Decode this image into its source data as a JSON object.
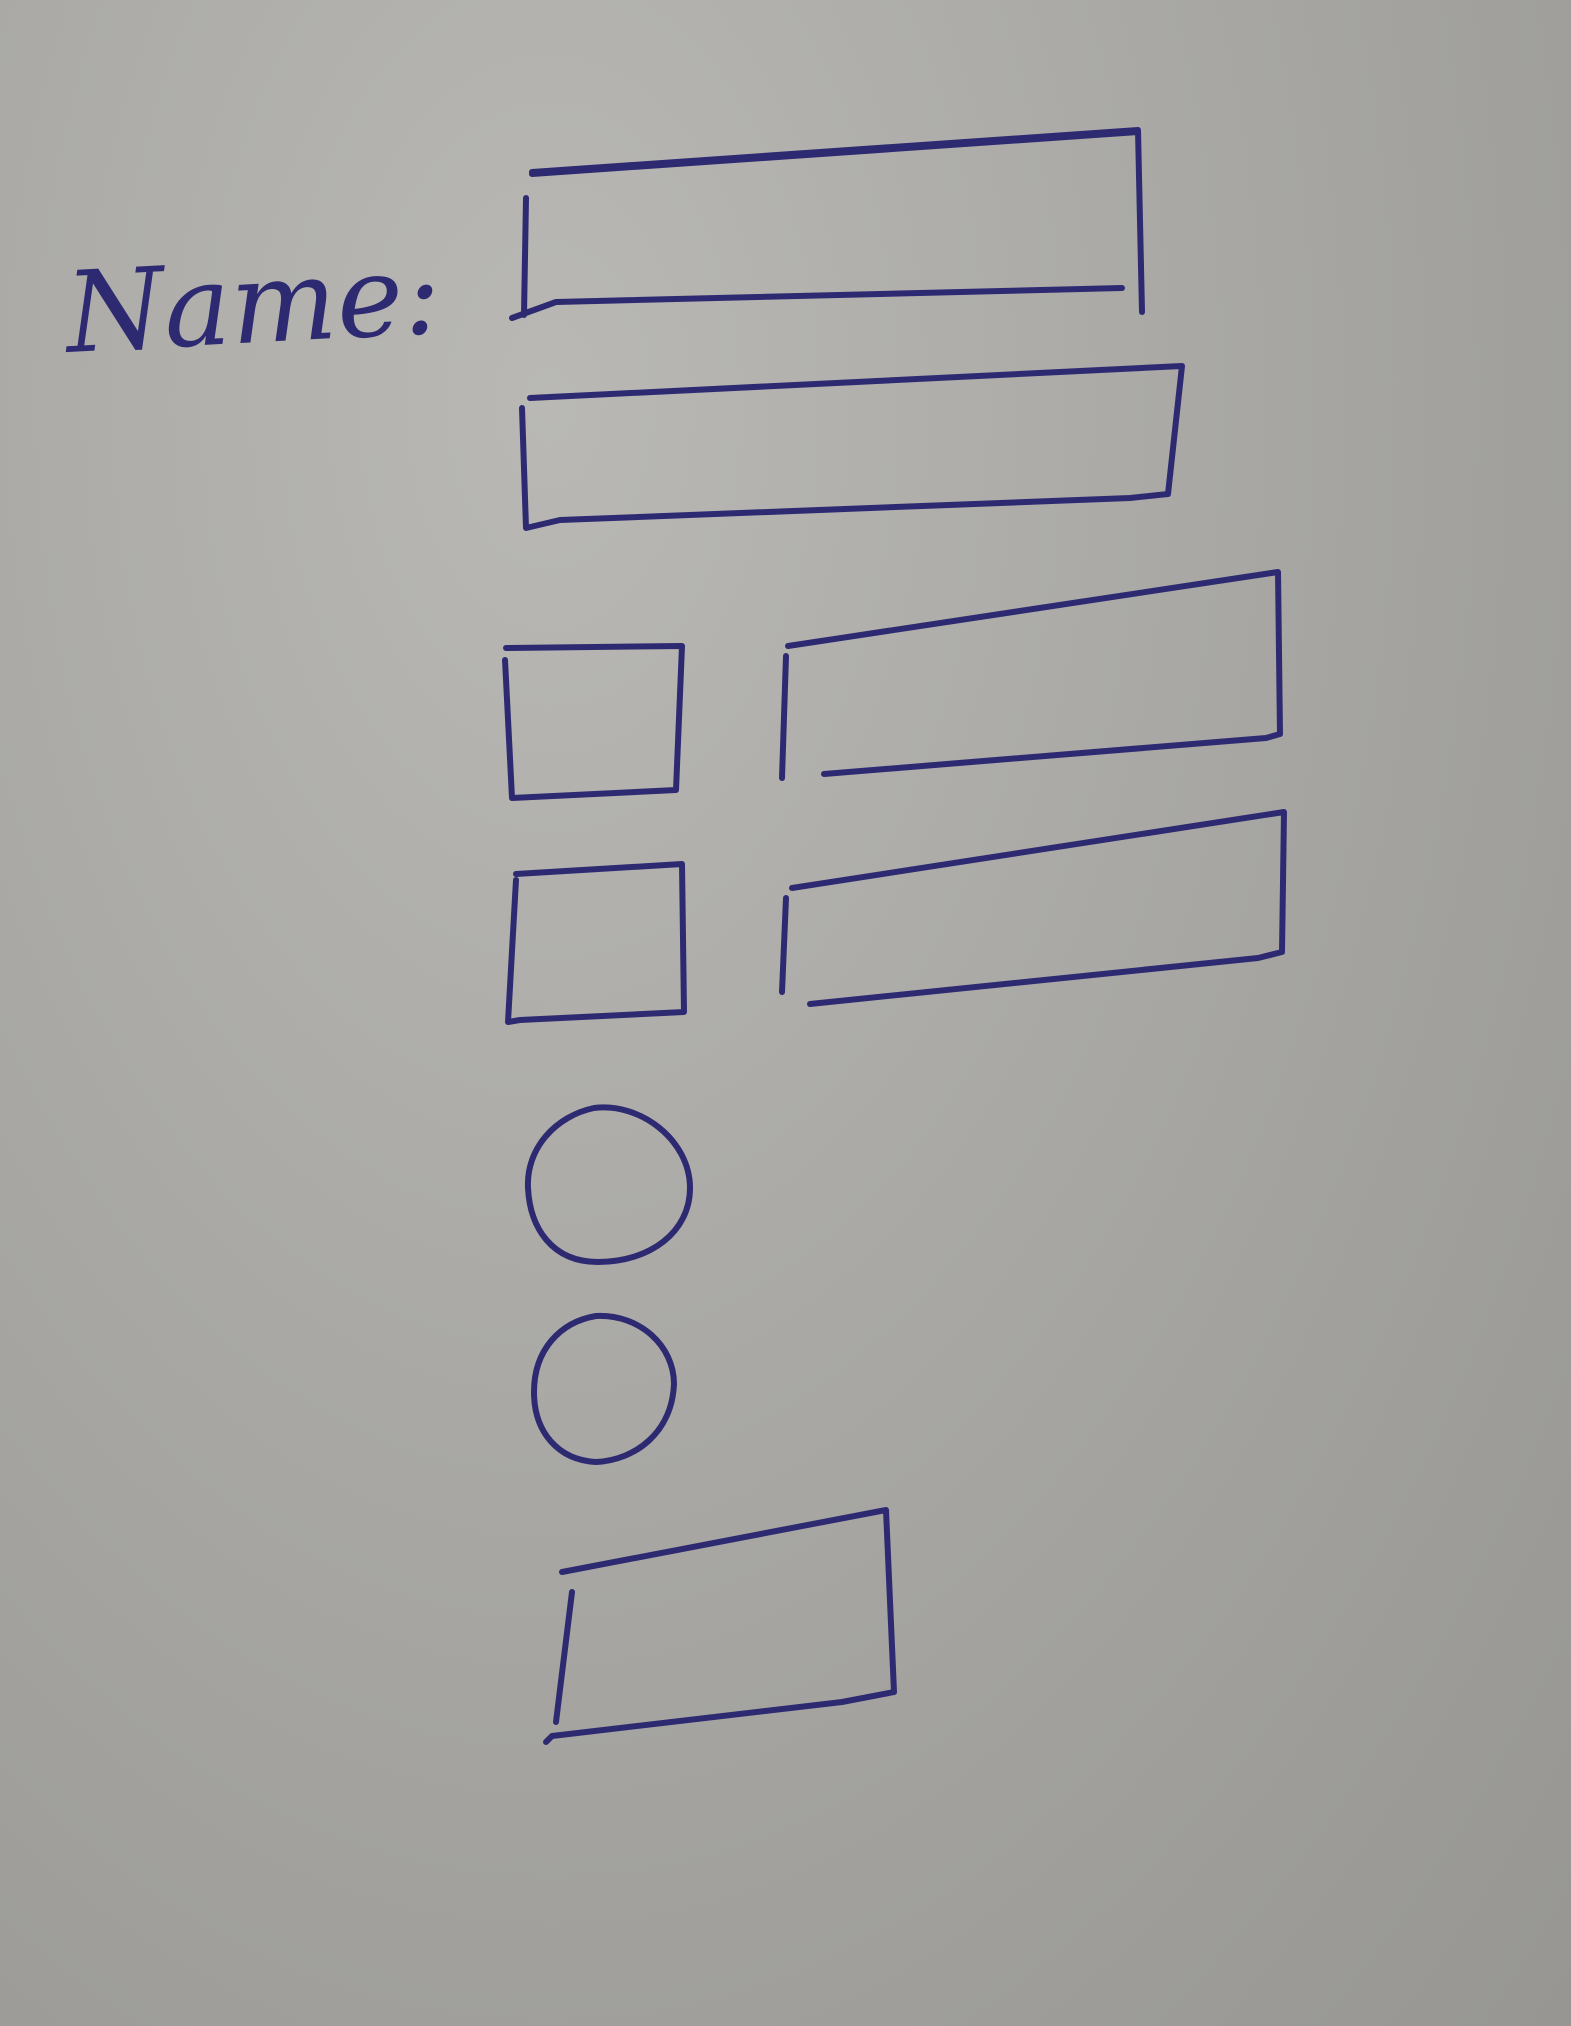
{
  "form": {
    "name_label": "Name:"
  },
  "colors": {
    "paper": "#a9a8a4",
    "ink": "#2e2a72"
  }
}
